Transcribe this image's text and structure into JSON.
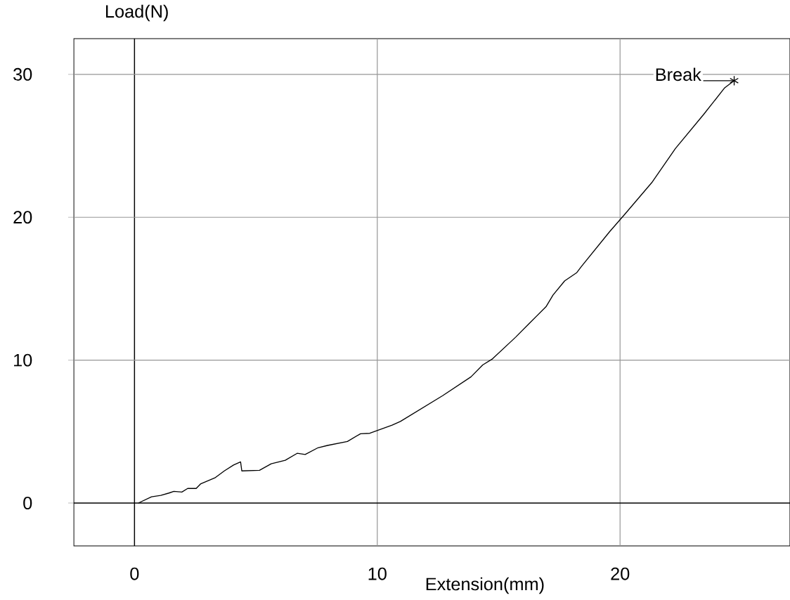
{
  "chart_data": {
    "type": "line",
    "xlabel": "Extension(mm)",
    "ylabel": "Load(N)",
    "xlim": [
      -2.5,
      27
    ],
    "ylim": [
      -3,
      32.5
    ],
    "xticks": [
      0,
      10,
      20
    ],
    "yticks": [
      0,
      10,
      20,
      30
    ],
    "grid": true,
    "annotations": [
      {
        "text": "Break",
        "x": 24.7,
        "y": 29.56
      }
    ],
    "series": [
      {
        "type": "scatter",
        "marker": "cross",
        "color": "#000000",
        "x": [
          24.7
        ],
        "values": [
          29.56
        ]
      },
      {
        "color": "#000000",
        "x": [
          0.16,
          0.7,
          1.08,
          1.42,
          1.62,
          1.95,
          2.19,
          2.54,
          2.73,
          3.31,
          3.7,
          4.08,
          4.37,
          4.42,
          5.15,
          5.63,
          6.21,
          6.7,
          7.03,
          7.56,
          7.95,
          8.77,
          9.31,
          9.69,
          10.61,
          10.95,
          12.7,
          13.86,
          14.34,
          14.73,
          15.7,
          16.27,
          16.95,
          17.24,
          17.72,
          18.22,
          18.4,
          19.57,
          20.2,
          21.31,
          22.28,
          23.44,
          24.31,
          24.7
        ],
        "values": [
          0,
          0.44,
          0.53,
          0.7,
          0.82,
          0.77,
          1.02,
          1.02,
          1.35,
          1.76,
          2.25,
          2.66,
          2.88,
          2.25,
          2.29,
          2.75,
          2.99,
          3.48,
          3.4,
          3.87,
          4.03,
          4.31,
          4.85,
          4.88,
          5.45,
          5.71,
          7.52,
          8.83,
          9.66,
          10.07,
          11.61,
          12.59,
          13.74,
          14.56,
          15.55,
          16.13,
          16.54,
          18.99,
          20.22,
          22.43,
          24.81,
          27.19,
          29.06,
          29.56
        ]
      }
    ]
  }
}
